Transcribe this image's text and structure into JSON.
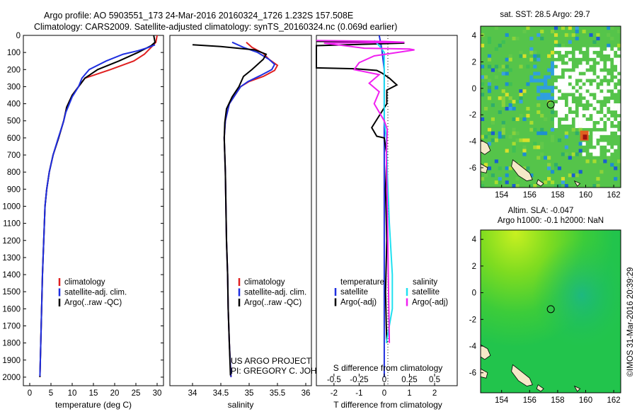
{
  "header": {
    "line1": "Argo profile: AO 5903551_173 24-Mar-2016 20160324_1726 1.232S 157.508E",
    "line2": "Climatology: CARS2009. Satellite-adjusted climatology: synTS_20160324.nc (0.069d earlier)"
  },
  "colors": {
    "climatology": "#e02020",
    "satellite": "#1f2fe0",
    "argo": "#000000",
    "satellite_sal": "#20e0f0",
    "argo_sal": "#f020f0"
  },
  "depth_axis": {
    "range": [
      0,
      2050
    ],
    "ticks": [
      0,
      100,
      200,
      300,
      400,
      500,
      600,
      700,
      800,
      900,
      1000,
      1100,
      1200,
      1300,
      1400,
      1500,
      1600,
      1700,
      1800,
      1900,
      2000
    ]
  },
  "chart_data": [
    {
      "type": "line",
      "id": "temperature",
      "xlabel": "temperature (deg C)",
      "xlim": [
        -1.5,
        31.5
      ],
      "xticks": [
        0,
        5,
        10,
        15,
        20,
        25,
        30
      ],
      "legend": [
        "climatology",
        "satellite-adj. clim.",
        "Argo(..raw -QC)"
      ],
      "series": [
        {
          "name": "climatology",
          "points": [
            [
              30,
              0
            ],
            [
              29.7,
              40
            ],
            [
              29,
              60
            ],
            [
              27,
              110
            ],
            [
              24.5,
              150
            ],
            [
              19,
              200
            ],
            [
              13,
              250
            ],
            [
              11.5,
              300
            ],
            [
              10,
              350
            ],
            [
              8.7,
              420
            ],
            [
              8,
              500
            ],
            [
              6.8,
              600
            ],
            [
              5.5,
              700
            ],
            [
              4.6,
              800
            ],
            [
              4,
              900
            ],
            [
              3.6,
              1000
            ],
            [
              3.3,
              1200
            ],
            [
              3,
              1400
            ],
            [
              2.8,
              1600
            ],
            [
              2.6,
              1800
            ],
            [
              2.4,
              2000
            ]
          ]
        },
        {
          "name": "satellite-adj. clim.",
          "points": [
            [
              29.2,
              0
            ],
            [
              29.5,
              40
            ],
            [
              28.6,
              60
            ],
            [
              25.5,
              100
            ],
            [
              21,
              150
            ],
            [
              16,
              200
            ],
            [
              13,
              250
            ],
            [
              11.5,
              300
            ],
            [
              10,
              350
            ],
            [
              8.7,
              420
            ],
            [
              8,
              500
            ],
            [
              6.8,
              600
            ],
            [
              5.5,
              700
            ],
            [
              4.6,
              800
            ],
            [
              4,
              900
            ],
            [
              3.6,
              1000
            ],
            [
              3.3,
              1200
            ],
            [
              3,
              1400
            ],
            [
              2.8,
              1600
            ],
            [
              2.6,
              1800
            ],
            [
              2.4,
              2000
            ]
          ]
        },
        {
          "name": "Argo(..raw -QC)",
          "points": [
            [
              29.5,
              55
            ],
            [
              28,
              70
            ],
            [
              25.5,
              90
            ],
            [
              22,
              110
            ],
            [
              18,
              150
            ],
            [
              14,
              200
            ],
            [
              12.3,
              250
            ],
            [
              11.5,
              300
            ],
            [
              10,
              360
            ],
            [
              8.5,
              450
            ],
            [
              7.9,
              510
            ],
            [
              6.6,
              610
            ],
            [
              5.5,
              700
            ],
            [
              4.6,
              800
            ],
            [
              4,
              900
            ],
            [
              3.6,
              1000
            ],
            [
              3.3,
              1200
            ],
            [
              3,
              1400
            ],
            [
              2.8,
              1600
            ],
            [
              2.6,
              1800
            ],
            [
              2.4,
              1995
            ]
          ]
        }
      ]
    },
    {
      "type": "line",
      "id": "salinity",
      "xlabel": "salinity",
      "xlim": [
        33.6,
        36.1
      ],
      "xticks": [
        34,
        34.5,
        35,
        35.5,
        36
      ],
      "legend": [
        "climatology",
        "satellite-adj. clim.",
        "Argo(..raw -QC)"
      ],
      "series": [
        {
          "name": "climatology",
          "points": [
            [
              34.95,
              40
            ],
            [
              35.05,
              70
            ],
            [
              35.25,
              105
            ],
            [
              35.35,
              140
            ],
            [
              35.5,
              175
            ],
            [
              35.45,
              205
            ],
            [
              35.25,
              240
            ],
            [
              35.0,
              270
            ],
            [
              34.85,
              300
            ],
            [
              34.75,
              350
            ],
            [
              34.65,
              400
            ],
            [
              34.58,
              500
            ],
            [
              34.56,
              600
            ],
            [
              34.57,
              700
            ],
            [
              34.58,
              800
            ],
            [
              34.59,
              1000
            ],
            [
              34.6,
              1200
            ],
            [
              34.62,
              1400
            ],
            [
              34.63,
              1600
            ],
            [
              34.65,
              1800
            ],
            [
              34.68,
              2000
            ]
          ]
        },
        {
          "name": "satellite-adj. clim.",
          "points": [
            [
              34.7,
              40
            ],
            [
              34.9,
              70
            ],
            [
              35.15,
              100
            ],
            [
              35.35,
              140
            ],
            [
              35.45,
              170
            ],
            [
              35.4,
              200
            ],
            [
              35.2,
              235
            ],
            [
              34.98,
              270
            ],
            [
              34.85,
              300
            ],
            [
              34.75,
              350
            ],
            [
              34.65,
              400
            ],
            [
              34.58,
              500
            ],
            [
              34.56,
              600
            ],
            [
              34.57,
              700
            ],
            [
              34.58,
              800
            ],
            [
              34.59,
              1000
            ],
            [
              34.6,
              1200
            ],
            [
              34.62,
              1400
            ],
            [
              34.63,
              1600
            ],
            [
              34.65,
              1800
            ],
            [
              34.68,
              2000
            ]
          ]
        },
        {
          "name": "Argo(..raw -QC)",
          "points": [
            [
              34.0,
              55
            ],
            [
              34.5,
              65
            ],
            [
              35.1,
              85
            ],
            [
              35.3,
              110
            ],
            [
              35.25,
              140
            ],
            [
              35.15,
              170
            ],
            [
              35.05,
              200
            ],
            [
              34.9,
              240
            ],
            [
              34.82,
              300
            ],
            [
              34.7,
              360
            ],
            [
              34.6,
              430
            ],
            [
              34.57,
              510
            ],
            [
              34.56,
              600
            ],
            [
              34.57,
              700
            ],
            [
              34.58,
              800
            ],
            [
              34.59,
              1000
            ],
            [
              34.6,
              1200
            ],
            [
              34.62,
              1400
            ],
            [
              34.63,
              1600
            ],
            [
              34.65,
              1800
            ],
            [
              34.67,
              1990
            ]
          ]
        }
      ]
    },
    {
      "type": "line",
      "id": "differences",
      "xlabel_top": "S difference from climatology",
      "xlabel": "T difference from climatology",
      "xlim_T": [
        -2.7,
        2.9
      ],
      "xticks_T": [
        -2,
        -1,
        0,
        1,
        2
      ],
      "xlim_S": [
        -0.675,
        0.725
      ],
      "xticks_S": [
        -0.5,
        -0.25,
        0,
        0.25,
        0.5
      ],
      "legend_temperature_title": "temperature",
      "legend_salinity_title": "salinity",
      "legend_items": {
        "sat": "satellite",
        "argo": "Argo(-adj)"
      },
      "series": [
        {
          "name": "temperature satellite",
          "points": [
            [
              -0.2,
              0
            ],
            [
              -0.1,
              80
            ],
            [
              0,
              200
            ],
            [
              0,
              2000
            ]
          ]
        },
        {
          "name": "temperature Argo(-adj)",
          "points": [
            [
              -2.7,
              35
            ],
            [
              0.3,
              38
            ],
            [
              0.8,
              45
            ],
            [
              -2.7,
              60
            ],
            [
              -2.7,
              190
            ],
            [
              -1.2,
              195
            ],
            [
              -0.3,
              205
            ],
            [
              -0.1,
              220
            ],
            [
              0.2,
              250
            ],
            [
              0.5,
              290
            ],
            [
              0.1,
              320
            ],
            [
              0.1,
              400
            ],
            [
              -0.2,
              470
            ],
            [
              -0.5,
              540
            ],
            [
              -0.3,
              590
            ],
            [
              0,
              600
            ],
            [
              0.1,
              700
            ],
            [
              0.05,
              900
            ],
            [
              0.1,
              1200
            ],
            [
              0.05,
              1500
            ],
            [
              0.08,
              1700
            ],
            [
              0.1,
              1800
            ]
          ]
        },
        {
          "name": "salinity satellite",
          "points": [
            [
              -0.1,
              30
            ],
            [
              -0.05,
              60
            ],
            [
              0,
              100
            ],
            [
              0,
              500
            ],
            [
              0.02,
              600
            ],
            [
              0.03,
              800
            ],
            [
              0.05,
              1100
            ],
            [
              0.08,
              1400
            ],
            [
              0.08,
              1600
            ],
            [
              0.02,
              1800
            ]
          ]
        },
        {
          "name": "salinity Argo(-adj)",
          "points": [
            [
              -0.675,
              30
            ],
            [
              0,
              35
            ],
            [
              0.2,
              40
            ],
            [
              -0.6,
              45
            ],
            [
              -0.2,
              75
            ],
            [
              0.25,
              80
            ],
            [
              0.3,
              85
            ],
            [
              -0.1,
              120
            ],
            [
              -0.25,
              160
            ],
            [
              -0.3,
              200
            ],
            [
              -0.05,
              230
            ],
            [
              -0.15,
              280
            ],
            [
              -0.05,
              330
            ],
            [
              -0.1,
              400
            ],
            [
              0,
              500
            ],
            [
              0.03,
              550
            ],
            [
              0.02,
              700
            ],
            [
              0.03,
              1000
            ],
            [
              0.04,
              1400
            ],
            [
              0.05,
              1800
            ]
          ]
        }
      ]
    },
    {
      "type": "heatmap",
      "id": "sst_map",
      "title": "sat. SST: 28.5  Argo: 29.7",
      "xlim": [
        152.5,
        162.5
      ],
      "ylim": [
        -7.5,
        4.7
      ],
      "xticks": [
        154,
        156,
        158,
        160,
        162
      ],
      "yticks": [
        -6,
        -4,
        -2,
        0,
        2,
        4
      ],
      "marker": [
        157.508,
        -1.232
      ]
    },
    {
      "type": "heatmap",
      "id": "sla_map",
      "title_line1": "Altim. SLA: -0.047",
      "title_line2": "Argo h1000: -0.1 h2000: NaN",
      "xlim": [
        152.5,
        162.5
      ],
      "ylim": [
        -7.5,
        4.7
      ],
      "xticks": [
        154,
        156,
        158,
        160,
        162
      ],
      "yticks": [
        -6,
        -4,
        -2,
        0,
        2,
        4
      ],
      "marker": [
        157.508,
        -1.232
      ]
    }
  ],
  "credit": {
    "line1": "US ARGO PROJECT",
    "line2": "PI: GREGORY C. JOHNSON"
  },
  "imos_stamp": "©IMOS 31-Mar-2016 20:39:29"
}
